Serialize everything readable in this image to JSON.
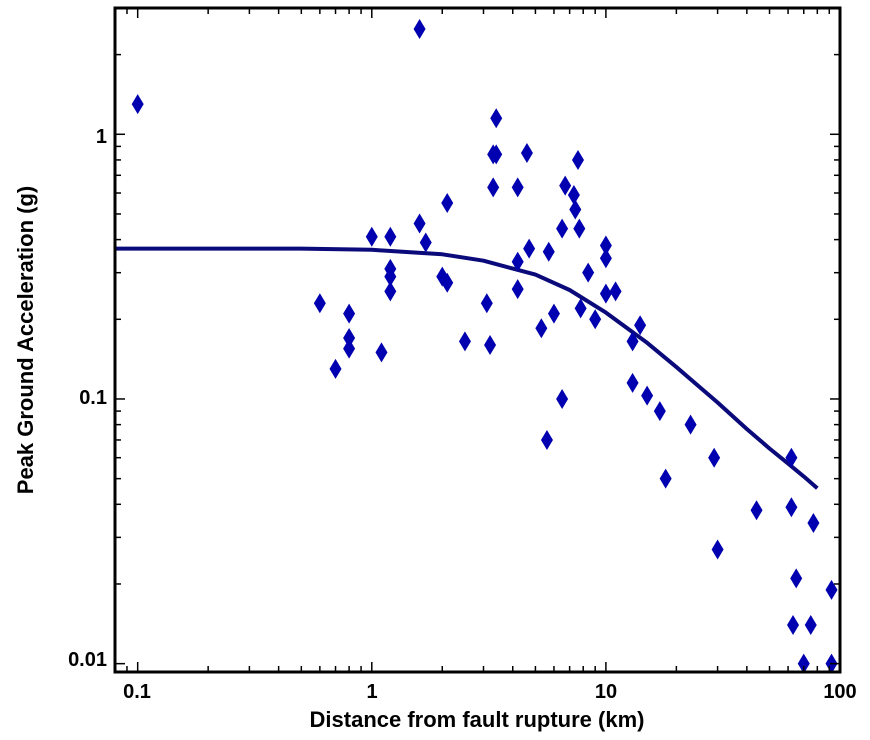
{
  "chart_data": {
    "type": "scatter",
    "title": "",
    "xlabel": "Distance from fault rupture (km)",
    "ylabel": "Peak Ground Acceleration (g)",
    "x_scale": "log",
    "y_scale": "log",
    "xlim": [
      0.08,
      100
    ],
    "ylim": [
      0.0093,
      3.0
    ],
    "x_ticks": [
      {
        "value": 0.1,
        "label": "0.1"
      },
      {
        "value": 1,
        "label": "1"
      },
      {
        "value": 10,
        "label": "10"
      },
      {
        "value": 100,
        "label": "100"
      }
    ],
    "y_ticks": [
      {
        "value": 0.01,
        "label": "0.01"
      },
      {
        "value": 0.1,
        "label": "0.1"
      },
      {
        "value": 1,
        "label": "1"
      }
    ],
    "grid": false,
    "colors": {
      "points": "#0000b0",
      "curve": "#0a0a7a",
      "axes": "#000000"
    },
    "series": [
      {
        "type": "scatter",
        "marker": "diamond",
        "points": [
          [
            0.1,
            1.3
          ],
          [
            0.6,
            0.23
          ],
          [
            0.7,
            0.13
          ],
          [
            0.8,
            0.21
          ],
          [
            0.8,
            0.17
          ],
          [
            0.8,
            0.155
          ],
          [
            1.0,
            0.41
          ],
          [
            1.1,
            0.15
          ],
          [
            1.2,
            0.41
          ],
          [
            1.2,
            0.31
          ],
          [
            1.2,
            0.29
          ],
          [
            1.2,
            0.255
          ],
          [
            1.6,
            2.5
          ],
          [
            1.6,
            0.46
          ],
          [
            1.7,
            0.39
          ],
          [
            2.0,
            0.29
          ],
          [
            2.1,
            0.55
          ],
          [
            2.1,
            0.275
          ],
          [
            2.5,
            0.165
          ],
          [
            3.1,
            0.23
          ],
          [
            3.2,
            0.16
          ],
          [
            3.3,
            0.84
          ],
          [
            3.3,
            0.63
          ],
          [
            3.4,
            1.15
          ],
          [
            3.4,
            0.84
          ],
          [
            4.2,
            0.63
          ],
          [
            4.2,
            0.33
          ],
          [
            4.2,
            0.26
          ],
          [
            4.6,
            0.85
          ],
          [
            4.7,
            0.37
          ],
          [
            5.3,
            0.185
          ],
          [
            5.6,
            0.07
          ],
          [
            5.7,
            0.36
          ],
          [
            6.0,
            0.21
          ],
          [
            6.5,
            0.44
          ],
          [
            6.5,
            0.1
          ],
          [
            6.7,
            0.64
          ],
          [
            7.3,
            0.59
          ],
          [
            7.4,
            0.52
          ],
          [
            7.6,
            0.8
          ],
          [
            7.7,
            0.44
          ],
          [
            7.8,
            0.22
          ],
          [
            8.4,
            0.3
          ],
          [
            9.0,
            0.2
          ],
          [
            10.0,
            0.38
          ],
          [
            10.0,
            0.34
          ],
          [
            10.0,
            0.25
          ],
          [
            11.0,
            0.255
          ],
          [
            13.0,
            0.165
          ],
          [
            13.0,
            0.115
          ],
          [
            14.0,
            0.19
          ],
          [
            15.0,
            0.103
          ],
          [
            17.0,
            0.09
          ],
          [
            18.0,
            0.05
          ],
          [
            23.0,
            0.08
          ],
          [
            29.0,
            0.06
          ],
          [
            30.0,
            0.027
          ],
          [
            44.0,
            0.038
          ],
          [
            62.0,
            0.06
          ],
          [
            62.0,
            0.039
          ],
          [
            63.0,
            0.014
          ],
          [
            65.0,
            0.021
          ],
          [
            70.0,
            0.01
          ],
          [
            75.0,
            0.014
          ],
          [
            77.0,
            0.034
          ],
          [
            92.0,
            0.019
          ],
          [
            92.0,
            0.01
          ]
        ]
      },
      {
        "type": "line",
        "points": [
          [
            0.08,
            0.37
          ],
          [
            0.5,
            0.37
          ],
          [
            1.0,
            0.366
          ],
          [
            2.0,
            0.352
          ],
          [
            3.0,
            0.333
          ],
          [
            5.0,
            0.295
          ],
          [
            7.0,
            0.258
          ],
          [
            10.0,
            0.212
          ],
          [
            15.0,
            0.163
          ],
          [
            20.0,
            0.132
          ],
          [
            30.0,
            0.097
          ],
          [
            40.0,
            0.077
          ],
          [
            50.0,
            0.065
          ],
          [
            60.0,
            0.057
          ],
          [
            70.0,
            0.051
          ],
          [
            80.0,
            0.046
          ]
        ]
      }
    ]
  }
}
